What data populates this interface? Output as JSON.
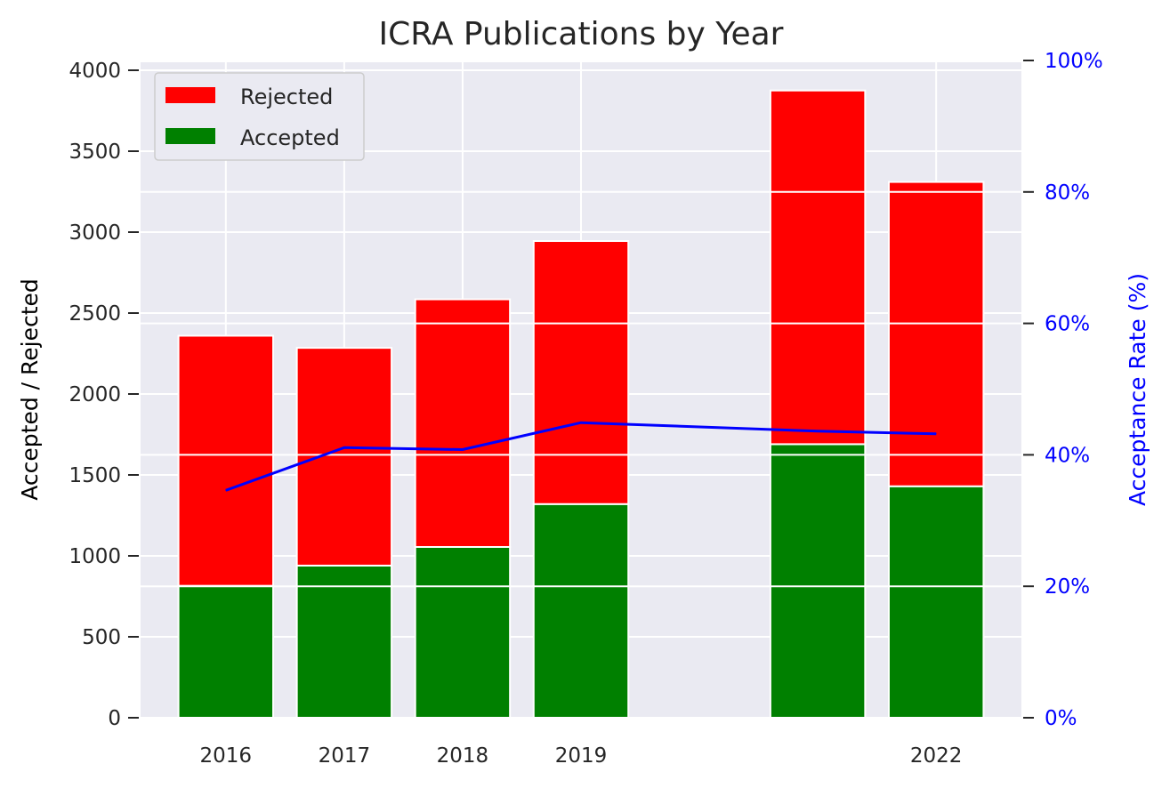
{
  "chart_data": {
    "type": "bar",
    "stacked": true,
    "title": "ICRA Publications by Year",
    "ylabel": "Accepted / Rejected",
    "y2label": "Acceptance Rate (%)",
    "ylim": [
      0,
      4050
    ],
    "y2lim": [
      0,
      100
    ],
    "x": [
      2016,
      2017,
      2018,
      2019,
      2021,
      2022
    ],
    "x_tick_labels": [
      {
        "x": 2016,
        "label": "2016"
      },
      {
        "x": 2017,
        "label": "2017"
      },
      {
        "x": 2018,
        "label": "2018"
      },
      {
        "x": 2019,
        "label": "2019"
      },
      {
        "x": 2022,
        "label": "2022"
      }
    ],
    "xlim": [
      2015.28,
      2022.72
    ],
    "y_ticks": [
      "0",
      "500",
      "1000",
      "1500",
      "2000",
      "2500",
      "3000",
      "3500",
      "4000"
    ],
    "y2_ticks": [
      "0%",
      "20%",
      "40%",
      "60%",
      "80%",
      "100%"
    ],
    "series": [
      {
        "name": "Accepted",
        "color": "#008000",
        "values": [
          815,
          940,
          1055,
          1320,
          1690,
          1430
        ]
      },
      {
        "name": "Rejected",
        "color": "#ff0000",
        "values": [
          1545,
          1345,
          1530,
          1625,
          2185,
          1880
        ]
      }
    ],
    "acceptance_rate": {
      "color": "#0000ff",
      "values": [
        34.6,
        41.1,
        40.8,
        44.9,
        43.6,
        43.2
      ]
    },
    "legend": {
      "placement": "top-left",
      "entries": [
        {
          "label": "Rejected",
          "color": "#ff0000"
        },
        {
          "label": "Accepted",
          "color": "#008000"
        }
      ]
    },
    "grid": true,
    "colors": {
      "plot_background": "#eaeaf2",
      "grid": "#ffffff",
      "secondary_axis": "#0000ff",
      "text": "#262626"
    }
  }
}
